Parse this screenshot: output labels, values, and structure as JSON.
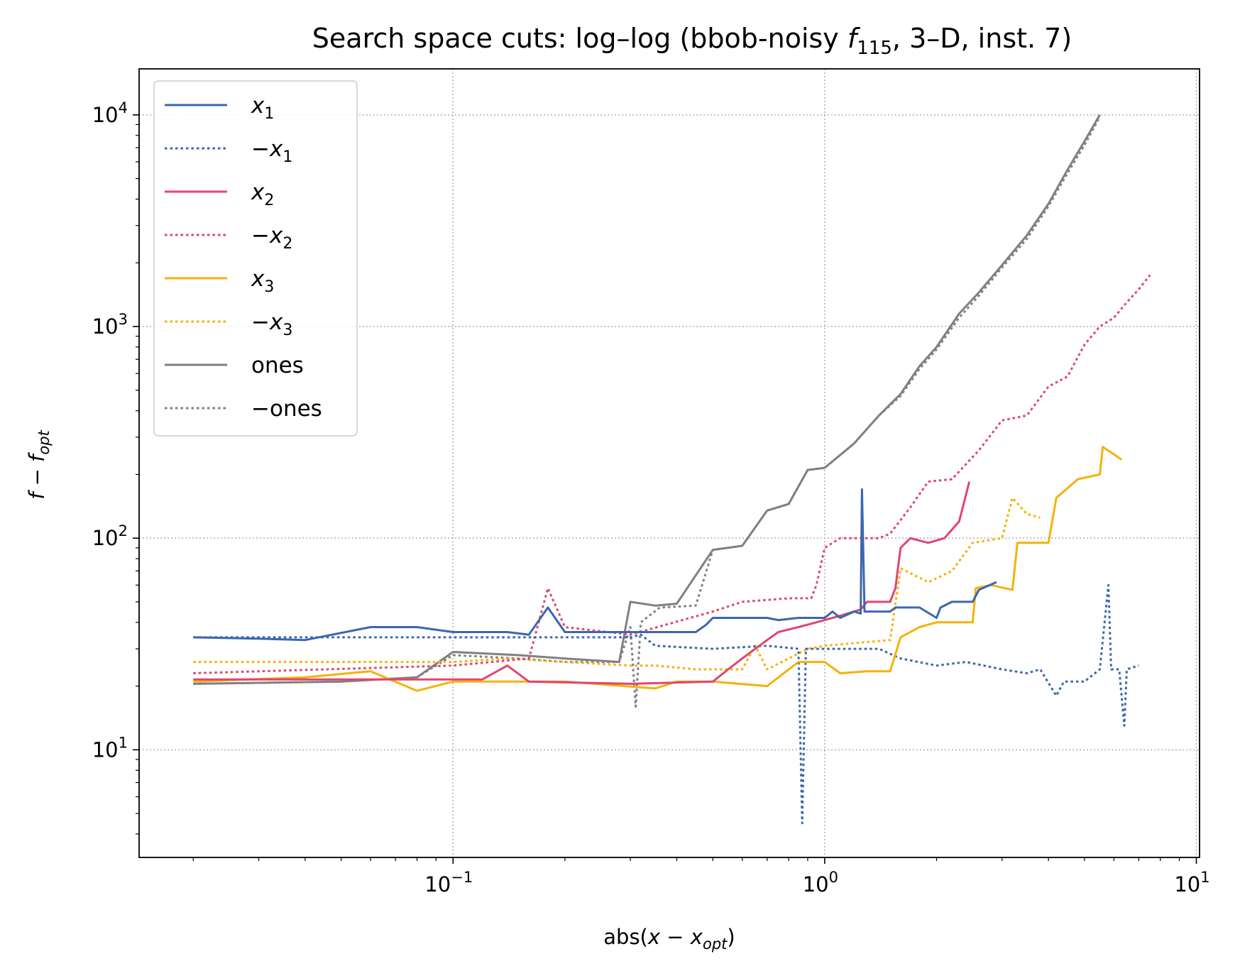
{
  "chart_data": {
    "type": "line",
    "title_parts": {
      "prefix": "Search space cuts: log–log (bbob-noisy ",
      "f": "f",
      "f_sub": "115",
      "suffix": ", 3–D, inst. 7)"
    },
    "xlabel_parts": {
      "pre": "abs(",
      "x": "x",
      "minus": " − ",
      "x2": "x",
      "sub": "opt",
      "post": ")"
    },
    "ylabel_parts": {
      "f": "f",
      "minus": " − ",
      "f2": "f",
      "sub": "opt"
    },
    "x_scale": "log",
    "y_scale": "log",
    "xlim": [
      0.0143,
      10.2
    ],
    "ylim": [
      3.1,
      16500
    ],
    "x_ticks": [
      {
        "value": 0.1,
        "base": "10",
        "exp": "−1"
      },
      {
        "value": 1,
        "base": "10",
        "exp": "0"
      },
      {
        "value": 10,
        "base": "10",
        "exp": "1"
      }
    ],
    "y_ticks": [
      {
        "value": 10,
        "base": "10",
        "exp": "1"
      },
      {
        "value": 100,
        "base": "10",
        "exp": "2"
      },
      {
        "value": 1000,
        "base": "10",
        "exp": "3"
      },
      {
        "value": 10000,
        "base": "10",
        "exp": "4"
      }
    ],
    "grid": true,
    "legend_position": "top-left",
    "series": [
      {
        "name": "x1",
        "label_var": "x",
        "label_sub": "1",
        "negated": false,
        "color": "#3b67ad",
        "dash": "solid",
        "points": [
          [
            0.02,
            34
          ],
          [
            0.03,
            33.5
          ],
          [
            0.04,
            33
          ],
          [
            0.06,
            38
          ],
          [
            0.08,
            38
          ],
          [
            0.1,
            36
          ],
          [
            0.14,
            36
          ],
          [
            0.16,
            35
          ],
          [
            0.18,
            47
          ],
          [
            0.2,
            36
          ],
          [
            0.3,
            36
          ],
          [
            0.45,
            36
          ],
          [
            0.48,
            39
          ],
          [
            0.5,
            42
          ],
          [
            0.7,
            42
          ],
          [
            0.75,
            41
          ],
          [
            0.85,
            42
          ],
          [
            1.0,
            42
          ],
          [
            1.05,
            45
          ],
          [
            1.1,
            42
          ],
          [
            1.2,
            45
          ],
          [
            1.25,
            44
          ],
          [
            1.26,
            170
          ],
          [
            1.28,
            45
          ],
          [
            1.5,
            45
          ],
          [
            1.55,
            47
          ],
          [
            1.8,
            47
          ],
          [
            2.0,
            42
          ],
          [
            2.05,
            47
          ],
          [
            2.2,
            50
          ],
          [
            2.5,
            50
          ],
          [
            2.6,
            57
          ],
          [
            2.9,
            62
          ]
        ]
      },
      {
        "name": "-x1",
        "label_var": "x",
        "label_sub": "1",
        "negated": true,
        "color": "#3b67ad",
        "dash": "dotted",
        "points": [
          [
            0.02,
            34
          ],
          [
            0.1,
            34
          ],
          [
            0.3,
            34
          ],
          [
            0.32,
            35
          ],
          [
            0.35,
            31
          ],
          [
            0.5,
            30
          ],
          [
            0.7,
            31
          ],
          [
            0.85,
            30
          ],
          [
            0.87,
            4.5
          ],
          [
            0.89,
            30
          ],
          [
            1.0,
            30
          ],
          [
            1.4,
            30
          ],
          [
            1.6,
            27
          ],
          [
            2.0,
            25
          ],
          [
            2.4,
            26
          ],
          [
            3.0,
            24
          ],
          [
            3.5,
            23
          ],
          [
            3.8,
            24
          ],
          [
            4.2,
            18
          ],
          [
            4.4,
            21
          ],
          [
            5.0,
            21
          ],
          [
            5.5,
            24
          ],
          [
            5.8,
            60
          ],
          [
            5.9,
            24
          ],
          [
            6.2,
            24
          ],
          [
            6.4,
            13
          ],
          [
            6.5,
            24
          ],
          [
            7.0,
            25
          ]
        ]
      },
      {
        "name": "x2",
        "label_var": "x",
        "label_sub": "2",
        "negated": false,
        "color": "#e0466f",
        "dash": "solid",
        "points": [
          [
            0.02,
            21.5
          ],
          [
            0.12,
            21.5
          ],
          [
            0.14,
            25
          ],
          [
            0.16,
            21
          ],
          [
            0.3,
            20.5
          ],
          [
            0.5,
            21
          ],
          [
            0.55,
            24
          ],
          [
            0.6,
            27
          ],
          [
            0.7,
            33
          ],
          [
            0.75,
            36
          ],
          [
            0.85,
            38
          ],
          [
            0.95,
            40
          ],
          [
            1.1,
            43
          ],
          [
            1.25,
            46
          ],
          [
            1.3,
            50
          ],
          [
            1.5,
            50
          ],
          [
            1.55,
            58
          ],
          [
            1.6,
            90
          ],
          [
            1.7,
            100
          ],
          [
            1.9,
            95
          ],
          [
            2.1,
            100
          ],
          [
            2.3,
            120
          ],
          [
            2.45,
            185
          ]
        ]
      },
      {
        "name": "-x2",
        "label_var": "x",
        "label_sub": "2",
        "negated": true,
        "color": "#e0466f",
        "dash": "dotted",
        "points": [
          [
            0.02,
            23
          ],
          [
            0.1,
            25
          ],
          [
            0.16,
            27
          ],
          [
            0.18,
            58
          ],
          [
            0.2,
            38
          ],
          [
            0.3,
            35
          ],
          [
            0.5,
            45
          ],
          [
            0.6,
            50
          ],
          [
            0.8,
            52
          ],
          [
            0.92,
            52
          ],
          [
            0.95,
            60
          ],
          [
            1.0,
            90
          ],
          [
            1.1,
            100
          ],
          [
            1.4,
            100
          ],
          [
            1.5,
            105
          ],
          [
            1.7,
            140
          ],
          [
            1.9,
            185
          ],
          [
            2.2,
            190
          ],
          [
            2.6,
            260
          ],
          [
            3.0,
            360
          ],
          [
            3.5,
            380
          ],
          [
            4.0,
            520
          ],
          [
            4.5,
            580
          ],
          [
            5.0,
            820
          ],
          [
            5.5,
            1000
          ],
          [
            6.0,
            1100
          ],
          [
            6.5,
            1300
          ],
          [
            7.0,
            1500
          ],
          [
            7.5,
            1750
          ]
        ]
      },
      {
        "name": "x3",
        "label_var": "x",
        "label_sub": "3",
        "negated": false,
        "color": "#f4b20b",
        "dash": "solid",
        "points": [
          [
            0.02,
            21
          ],
          [
            0.04,
            22
          ],
          [
            0.06,
            23.5
          ],
          [
            0.08,
            19
          ],
          [
            0.1,
            21
          ],
          [
            0.2,
            21
          ],
          [
            0.35,
            19.5
          ],
          [
            0.4,
            21
          ],
          [
            0.5,
            21
          ],
          [
            0.7,
            20
          ],
          [
            0.85,
            26
          ],
          [
            1.0,
            26
          ],
          [
            1.1,
            23
          ],
          [
            1.3,
            23.5
          ],
          [
            1.5,
            23.5
          ],
          [
            1.6,
            34
          ],
          [
            1.8,
            38
          ],
          [
            2.0,
            40
          ],
          [
            2.5,
            40
          ],
          [
            2.55,
            58
          ],
          [
            2.8,
            60
          ],
          [
            3.2,
            57
          ],
          [
            3.3,
            95
          ],
          [
            4.0,
            95
          ],
          [
            4.2,
            155
          ],
          [
            4.8,
            190
          ],
          [
            5.5,
            200
          ],
          [
            5.6,
            270
          ],
          [
            6.3,
            235
          ]
        ]
      },
      {
        "name": "-x3",
        "label_var": "x",
        "label_sub": "3",
        "negated": true,
        "color": "#f4b20b",
        "dash": "dotted",
        "points": [
          [
            0.02,
            26
          ],
          [
            0.06,
            26
          ],
          [
            0.1,
            26
          ],
          [
            0.14,
            27
          ],
          [
            0.2,
            26
          ],
          [
            0.3,
            25
          ],
          [
            0.35,
            25
          ],
          [
            0.45,
            24
          ],
          [
            0.6,
            24
          ],
          [
            0.65,
            31
          ],
          [
            0.7,
            24
          ],
          [
            0.8,
            27
          ],
          [
            0.9,
            30
          ],
          [
            1.0,
            31
          ],
          [
            1.5,
            33
          ],
          [
            1.6,
            72
          ],
          [
            1.9,
            62
          ],
          [
            2.2,
            70
          ],
          [
            2.5,
            95
          ],
          [
            3.0,
            100
          ],
          [
            3.2,
            155
          ],
          [
            3.5,
            130
          ],
          [
            3.8,
            125
          ]
        ]
      },
      {
        "name": "ones",
        "label_text": "ones",
        "negated": false,
        "color": "#808080",
        "dash": "solid",
        "points": [
          [
            0.02,
            20.5
          ],
          [
            0.05,
            21
          ],
          [
            0.08,
            22
          ],
          [
            0.1,
            29
          ],
          [
            0.15,
            28
          ],
          [
            0.2,
            27
          ],
          [
            0.28,
            26
          ],
          [
            0.3,
            50
          ],
          [
            0.35,
            48
          ],
          [
            0.4,
            49
          ],
          [
            0.5,
            88
          ],
          [
            0.6,
            92
          ],
          [
            0.7,
            135
          ],
          [
            0.8,
            145
          ],
          [
            0.9,
            210
          ],
          [
            1.0,
            215
          ],
          [
            1.2,
            280
          ],
          [
            1.4,
            380
          ],
          [
            1.6,
            480
          ],
          [
            1.8,
            650
          ],
          [
            2.0,
            800
          ],
          [
            2.3,
            1150
          ],
          [
            2.6,
            1450
          ],
          [
            3.0,
            1950
          ],
          [
            3.5,
            2700
          ],
          [
            4.0,
            3800
          ],
          [
            4.5,
            5500
          ],
          [
            5.0,
            7500
          ],
          [
            5.5,
            10000
          ]
        ]
      },
      {
        "name": "-ones",
        "label_text": "ones",
        "negated": true,
        "color": "#808080",
        "dash": "dotted",
        "points": [
          [
            0.02,
            20.5
          ],
          [
            0.05,
            21
          ],
          [
            0.08,
            22
          ],
          [
            0.1,
            28
          ],
          [
            0.15,
            27
          ],
          [
            0.2,
            26
          ],
          [
            0.28,
            26
          ],
          [
            0.3,
            38
          ],
          [
            0.31,
            16
          ],
          [
            0.32,
            40
          ],
          [
            0.36,
            47
          ],
          [
            0.45,
            48
          ],
          [
            0.5,
            88
          ],
          [
            0.6,
            92
          ],
          [
            0.7,
            135
          ],
          [
            0.8,
            145
          ],
          [
            0.9,
            210
          ],
          [
            1.0,
            215
          ],
          [
            1.2,
            280
          ],
          [
            1.4,
            380
          ],
          [
            1.6,
            470
          ],
          [
            1.8,
            630
          ],
          [
            2.0,
            780
          ],
          [
            2.3,
            1100
          ],
          [
            2.6,
            1400
          ],
          [
            3.0,
            1900
          ],
          [
            3.5,
            2600
          ],
          [
            4.0,
            3700
          ],
          [
            4.5,
            5300
          ],
          [
            5.0,
            7200
          ],
          [
            5.5,
            9800
          ]
        ]
      }
    ]
  }
}
